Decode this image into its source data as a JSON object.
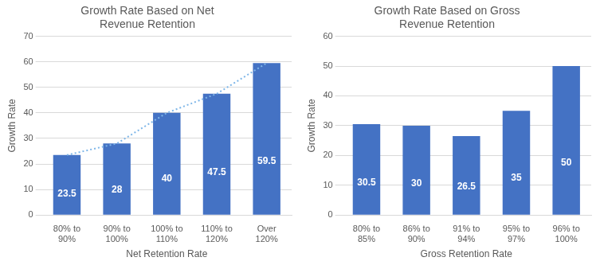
{
  "chart_data": [
    {
      "type": "bar",
      "title": "Growth Rate Based on Net\nRevenue Retention",
      "xlabel": "Net Retention Rate",
      "ylabel": "Growth Rate",
      "categories": [
        "80% to\n90%",
        "90% to\n100%",
        "100% to\n110%",
        "110% to\n120%",
        "Over\n120%"
      ],
      "series": [
        {
          "type": "bar",
          "color": "#4472C4",
          "values": [
            23.5,
            28,
            40,
            47.5,
            59.5
          ]
        },
        {
          "type": "line",
          "color": "#7EB6E8",
          "line_style": "dotted",
          "values": [
            23.5,
            28,
            40,
            47.5,
            59.5
          ]
        }
      ],
      "ylim": [
        0,
        70
      ],
      "yticks": [
        0,
        10,
        20,
        30,
        40,
        50,
        60,
        70
      ],
      "grid": true,
      "data_labels": true
    },
    {
      "type": "bar",
      "title": "Growth Rate Based on Gross\nRevenue Retention",
      "xlabel": "Gross Retention Rate",
      "ylabel": "Growth Rate",
      "categories": [
        "80% to\n85%",
        "86% to\n90%",
        "91% to\n94%",
        "95% to\n97%",
        "96% to\n100%"
      ],
      "values": [
        30.5,
        30,
        26.5,
        35,
        50
      ],
      "color": "#4472C4",
      "ylim": [
        0,
        60
      ],
      "yticks": [
        0,
        10,
        20,
        30,
        40,
        50,
        60
      ],
      "grid": true,
      "data_labels": true
    }
  ]
}
